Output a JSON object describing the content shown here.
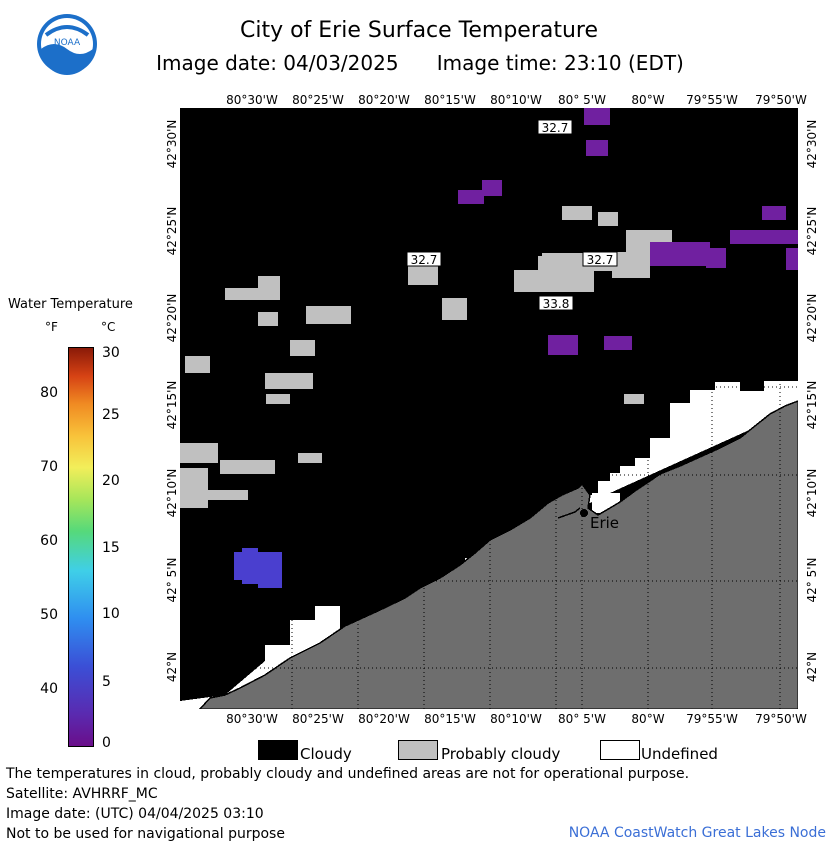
{
  "header": {
    "title": "City of Erie Surface Temperature",
    "date_label": "Image date: 04/03/2025",
    "time_label": "Image time: 23:10 (EDT)",
    "logo_text": "NOAA"
  },
  "map": {
    "longitude_labels": [
      "80°30'W",
      "80°25'W",
      "80°20'W",
      "80°15'W",
      "80°10'W",
      "80° 5'W",
      "80°W",
      "79°55'W",
      "79°50'W"
    ],
    "latitude_labels": [
      "42°30'N",
      "42°25'N",
      "42°20'N",
      "42°15'N",
      "42°10'N",
      "42° 5'N",
      "42°N"
    ],
    "temperature_labels": [
      "32.7",
      "32.7",
      "32.7",
      "33.8"
    ],
    "city": "Erie",
    "colors": {
      "water_cloudy": "#000000",
      "probably_cloudy": "#c0c0c0",
      "undefined": "#ffffff",
      "land": "#6e6e6e",
      "cold_water": "#7020a0",
      "blue_water": "#4040d0"
    }
  },
  "legend": {
    "title": "Water Temperature",
    "unit_f": "°F",
    "unit_c": "°C",
    "ticks_f": [
      "80",
      "70",
      "60",
      "50",
      "40"
    ],
    "ticks_c": [
      "30",
      "25",
      "20",
      "15",
      "10",
      "5",
      "0"
    ]
  },
  "key": {
    "cloudy": "Cloudy",
    "probably_cloudy": "Probably cloudy",
    "undefined": "Undefined"
  },
  "footer": {
    "line1": "The temperatures in cloud, probably cloudy and undefined areas are not for operational purpose.",
    "line2": "Satellite: AVHRRF_MC",
    "line3": "Image date: (UTC) 04/04/2025  03:10",
    "line4": "Not to be used for navigational purpose",
    "node": "NOAA CoastWatch Great Lakes Node"
  }
}
